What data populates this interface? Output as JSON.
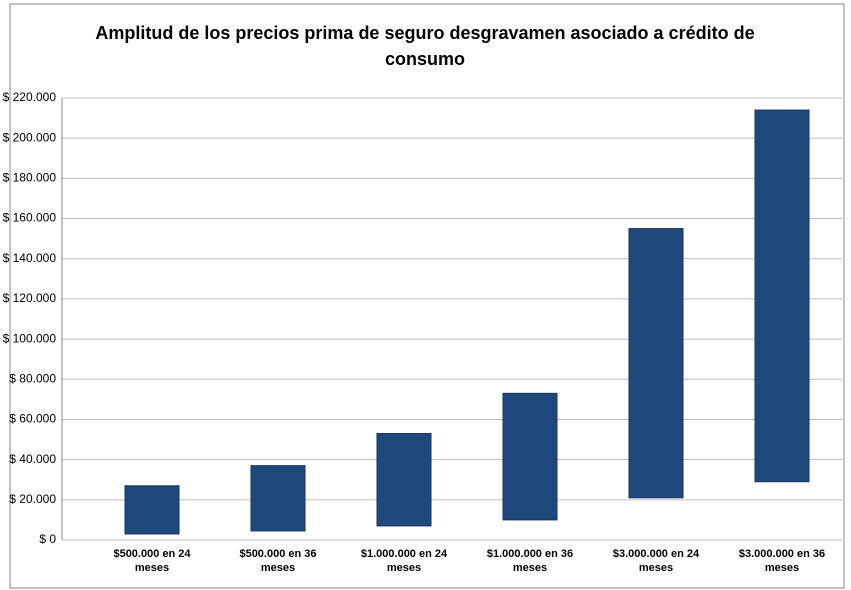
{
  "chart_data": {
    "type": "floating_bar",
    "title": "Amplitud de los precios prima de seguro desgravamen asociado  a crédito de consumo",
    "categories": [
      "$500.000 en 24 meses",
      "$500.000 en 36 meses",
      "$1.000.000 en 24 meses",
      "$1.000.000 en 36 meses",
      "$3.000.000 en 24 meses",
      "$3.000.000 en 36 meses"
    ],
    "low": [
      3000,
      4500,
      7000,
      10000,
      21000,
      29000
    ],
    "high": [
      27000,
      37000,
      53000,
      73000,
      155000,
      214000
    ],
    "color": "#1f497d",
    "ylim": [
      0,
      220000
    ],
    "yticks": [
      {
        "value": 0,
        "label": "$ 0"
      },
      {
        "value": 20000,
        "label": "$ 20.000"
      },
      {
        "value": 40000,
        "label": "$ 40.000"
      },
      {
        "value": 60000,
        "label": "$ 60.000"
      },
      {
        "value": 80000,
        "label": "$ 80.000"
      },
      {
        "value": 100000,
        "label": "$ 100.000"
      },
      {
        "value": 120000,
        "label": "$ 120.000"
      },
      {
        "value": 140000,
        "label": "$ 140.000"
      },
      {
        "value": 160000,
        "label": "$ 160.000"
      },
      {
        "value": 180000,
        "label": "$ 180.000"
      },
      {
        "value": 200000,
        "label": "$ 200.000"
      },
      {
        "value": 220000,
        "label": "$ 220.000"
      }
    ],
    "grid": true
  }
}
